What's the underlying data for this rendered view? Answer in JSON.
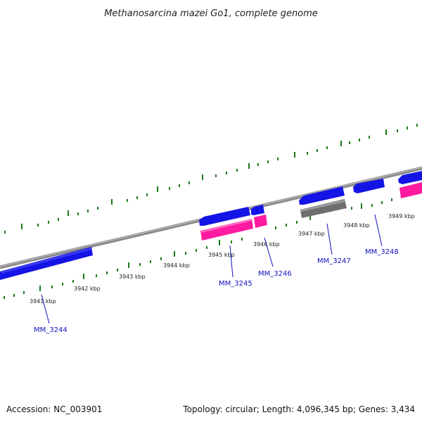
{
  "title": "Methanosarcina mazei Go1, complete genome",
  "accession": "Accession: NC_003901",
  "summary": "Topology: circular; Length: 4,096,345 bp; Genes: 3,434",
  "colors": {
    "backbone": "#8a8a8a",
    "tick": "#1a7a1a",
    "gene_label": "#1010c0",
    "forward_strand_gene": "#1414e6",
    "reverse_strand_gene": "#1414e6",
    "rna_gene": "#ff1aa0",
    "pseudogene": "#6e6e6e"
  },
  "tick_labels": [
    "3941 kbp",
    "3942 kbp",
    "3943 kbp",
    "3944 kbp",
    "3945 kbp",
    "3946 kbp",
    "3947 kbp",
    "3948 kbp",
    "3949 kbp"
  ],
  "gene_labels": [
    "MM_3244",
    "MM_3245",
    "MM_3246",
    "MM_3247",
    "MM_3248"
  ]
}
